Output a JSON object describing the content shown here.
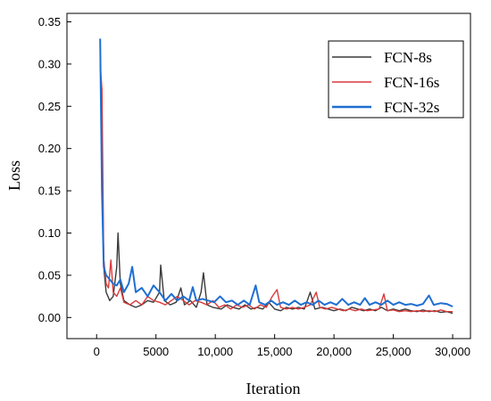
{
  "chart_data": {
    "type": "line",
    "title": "",
    "xlabel": "Iteration",
    "ylabel": "Loss",
    "xlim": [
      -2500,
      31500
    ],
    "ylim": [
      -0.025,
      0.36
    ],
    "x_ticks": [
      0,
      5000,
      10000,
      15000,
      20000,
      25000,
      30000
    ],
    "x_tick_labels": [
      "0",
      "5000",
      "10,000",
      "15,000",
      "20,000",
      "25,000",
      "30,000"
    ],
    "y_ticks": [
      0.0,
      0.05,
      0.1,
      0.15,
      0.2,
      0.25,
      0.3,
      0.35
    ],
    "y_tick_labels": [
      "0.00",
      "0.05",
      "0.10",
      "0.15",
      "0.20",
      "0.25",
      "0.30",
      "0.35"
    ],
    "grid": false,
    "legend_position": "top-right",
    "series": [
      {
        "name": "FCN-8s",
        "color": "#3a3a3a",
        "points": [
          [
            300,
            0.32
          ],
          [
            450,
            0.2
          ],
          [
            600,
            0.06
          ],
          [
            800,
            0.03
          ],
          [
            1100,
            0.02
          ],
          [
            1400,
            0.025
          ],
          [
            1700,
            0.06
          ],
          [
            1800,
            0.1
          ],
          [
            2000,
            0.04
          ],
          [
            2300,
            0.02
          ],
          [
            2800,
            0.015
          ],
          [
            3300,
            0.012
          ],
          [
            3800,
            0.015
          ],
          [
            4300,
            0.02
          ],
          [
            4800,
            0.018
          ],
          [
            5300,
            0.03
          ],
          [
            5400,
            0.062
          ],
          [
            5700,
            0.02
          ],
          [
            6200,
            0.015
          ],
          [
            6700,
            0.018
          ],
          [
            7100,
            0.035
          ],
          [
            7400,
            0.015
          ],
          [
            7900,
            0.02
          ],
          [
            8400,
            0.012
          ],
          [
            8800,
            0.03
          ],
          [
            9000,
            0.053
          ],
          [
            9300,
            0.015
          ],
          [
            9800,
            0.012
          ],
          [
            10500,
            0.01
          ],
          [
            11000,
            0.015
          ],
          [
            11500,
            0.012
          ],
          [
            12000,
            0.01
          ],
          [
            12500,
            0.015
          ],
          [
            13000,
            0.01
          ],
          [
            13500,
            0.012
          ],
          [
            14000,
            0.01
          ],
          [
            14500,
            0.018
          ],
          [
            15000,
            0.01
          ],
          [
            15500,
            0.008
          ],
          [
            16000,
            0.012
          ],
          [
            16500,
            0.01
          ],
          [
            17000,
            0.012
          ],
          [
            17500,
            0.01
          ],
          [
            18000,
            0.03
          ],
          [
            18400,
            0.01
          ],
          [
            19000,
            0.012
          ],
          [
            19500,
            0.01
          ],
          [
            20000,
            0.008
          ],
          [
            20500,
            0.01
          ],
          [
            21000,
            0.008
          ],
          [
            21500,
            0.012
          ],
          [
            22000,
            0.01
          ],
          [
            22500,
            0.008
          ],
          [
            23000,
            0.01
          ],
          [
            23500,
            0.008
          ],
          [
            24000,
            0.012
          ],
          [
            24500,
            0.008
          ],
          [
            25000,
            0.01
          ],
          [
            25500,
            0.008
          ],
          [
            26000,
            0.01
          ],
          [
            26500,
            0.008
          ],
          [
            27000,
            0.007
          ],
          [
            27500,
            0.009
          ],
          [
            28000,
            0.007
          ],
          [
            28500,
            0.008
          ],
          [
            29000,
            0.006
          ],
          [
            29500,
            0.007
          ],
          [
            30000,
            0.005
          ]
        ]
      },
      {
        "name": "FCN-16s",
        "color": "#d93a3a",
        "points": [
          [
            300,
            0.3
          ],
          [
            450,
            0.27
          ],
          [
            600,
            0.07
          ],
          [
            800,
            0.04
          ],
          [
            1000,
            0.035
          ],
          [
            1200,
            0.068
          ],
          [
            1400,
            0.03
          ],
          [
            1700,
            0.025
          ],
          [
            2000,
            0.035
          ],
          [
            2300,
            0.018
          ],
          [
            2800,
            0.015
          ],
          [
            3300,
            0.02
          ],
          [
            3800,
            0.015
          ],
          [
            4300,
            0.025
          ],
          [
            4800,
            0.02
          ],
          [
            5300,
            0.018
          ],
          [
            5800,
            0.015
          ],
          [
            6300,
            0.02
          ],
          [
            6800,
            0.025
          ],
          [
            7300,
            0.02
          ],
          [
            7800,
            0.015
          ],
          [
            8300,
            0.02
          ],
          [
            8800,
            0.018
          ],
          [
            9300,
            0.015
          ],
          [
            9800,
            0.02
          ],
          [
            10300,
            0.012
          ],
          [
            10800,
            0.015
          ],
          [
            11300,
            0.01
          ],
          [
            11800,
            0.015
          ],
          [
            12300,
            0.012
          ],
          [
            12800,
            0.015
          ],
          [
            13300,
            0.01
          ],
          [
            13800,
            0.015
          ],
          [
            14300,
            0.012
          ],
          [
            14800,
            0.025
          ],
          [
            15200,
            0.033
          ],
          [
            15500,
            0.012
          ],
          [
            16000,
            0.01
          ],
          [
            16500,
            0.012
          ],
          [
            17000,
            0.01
          ],
          [
            17500,
            0.012
          ],
          [
            18000,
            0.015
          ],
          [
            18500,
            0.03
          ],
          [
            18800,
            0.012
          ],
          [
            19300,
            0.01
          ],
          [
            19800,
            0.012
          ],
          [
            20300,
            0.01
          ],
          [
            20800,
            0.008
          ],
          [
            21300,
            0.01
          ],
          [
            21800,
            0.008
          ],
          [
            22300,
            0.01
          ],
          [
            22800,
            0.008
          ],
          [
            23300,
            0.009
          ],
          [
            23800,
            0.01
          ],
          [
            24200,
            0.028
          ],
          [
            24500,
            0.008
          ],
          [
            25000,
            0.009
          ],
          [
            25500,
            0.007
          ],
          [
            26000,
            0.008
          ],
          [
            26500,
            0.007
          ],
          [
            27000,
            0.008
          ],
          [
            27500,
            0.007
          ],
          [
            28000,
            0.008
          ],
          [
            28500,
            0.007
          ],
          [
            29000,
            0.009
          ],
          [
            29500,
            0.007
          ],
          [
            30000,
            0.007
          ]
        ]
      },
      {
        "name": "FCN-32s",
        "color": "#1f6fd1",
        "points": [
          [
            300,
            0.33
          ],
          [
            450,
            0.15
          ],
          [
            600,
            0.06
          ],
          [
            800,
            0.05
          ],
          [
            1100,
            0.045
          ],
          [
            1400,
            0.04
          ],
          [
            1700,
            0.038
          ],
          [
            2000,
            0.045
          ],
          [
            2300,
            0.03
          ],
          [
            2700,
            0.04
          ],
          [
            3000,
            0.06
          ],
          [
            3300,
            0.03
          ],
          [
            3800,
            0.035
          ],
          [
            4300,
            0.025
          ],
          [
            4800,
            0.038
          ],
          [
            5300,
            0.03
          ],
          [
            5800,
            0.02
          ],
          [
            6300,
            0.028
          ],
          [
            6800,
            0.02
          ],
          [
            7300,
            0.025
          ],
          [
            7800,
            0.02
          ],
          [
            8100,
            0.036
          ],
          [
            8400,
            0.02
          ],
          [
            8900,
            0.022
          ],
          [
            9400,
            0.02
          ],
          [
            9900,
            0.018
          ],
          [
            10400,
            0.025
          ],
          [
            10900,
            0.018
          ],
          [
            11400,
            0.02
          ],
          [
            11900,
            0.015
          ],
          [
            12400,
            0.02
          ],
          [
            12900,
            0.015
          ],
          [
            13400,
            0.038
          ],
          [
            13700,
            0.018
          ],
          [
            14200,
            0.015
          ],
          [
            14700,
            0.02
          ],
          [
            15200,
            0.015
          ],
          [
            15700,
            0.018
          ],
          [
            16200,
            0.015
          ],
          [
            16700,
            0.02
          ],
          [
            17200,
            0.015
          ],
          [
            17700,
            0.018
          ],
          [
            18200,
            0.015
          ],
          [
            18700,
            0.02
          ],
          [
            19200,
            0.015
          ],
          [
            19700,
            0.018
          ],
          [
            20200,
            0.015
          ],
          [
            20700,
            0.022
          ],
          [
            21200,
            0.015
          ],
          [
            21700,
            0.018
          ],
          [
            22200,
            0.015
          ],
          [
            22600,
            0.023
          ],
          [
            23000,
            0.015
          ],
          [
            23500,
            0.018
          ],
          [
            24000,
            0.015
          ],
          [
            24500,
            0.02
          ],
          [
            25000,
            0.015
          ],
          [
            25500,
            0.018
          ],
          [
            26000,
            0.015
          ],
          [
            26500,
            0.016
          ],
          [
            27000,
            0.014
          ],
          [
            27500,
            0.016
          ],
          [
            28000,
            0.026
          ],
          [
            28400,
            0.015
          ],
          [
            29000,
            0.017
          ],
          [
            29500,
            0.016
          ],
          [
            30000,
            0.013
          ]
        ]
      }
    ]
  }
}
